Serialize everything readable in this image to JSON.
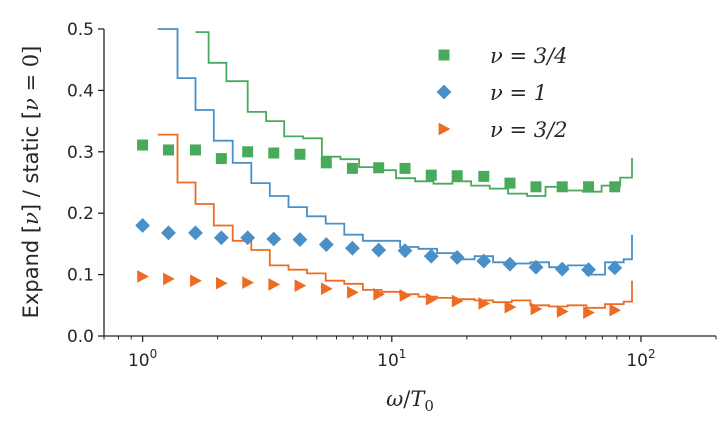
{
  "chart_data": {
    "type": "scatter",
    "xscale": "log",
    "xlim": [
      0.7,
      200
    ],
    "ylim": [
      0,
      0.5
    ],
    "xlabel": "ω/T₀",
    "ylabel": "Expand [ν] / static [ν = 0]",
    "x_tick_labels": [
      {
        "value": 1,
        "base": "10",
        "exp": "0"
      },
      {
        "value": 10,
        "base": "10",
        "exp": "1"
      },
      {
        "value": 100,
        "base": "10",
        "exp": "2"
      }
    ],
    "y_ticks": [
      0.0,
      0.1,
      0.2,
      0.3,
      0.4,
      0.5
    ],
    "y_tick_labels": [
      "0.0",
      "0.1",
      "0.2",
      "0.3",
      "0.4",
      "0.5"
    ],
    "legend_position": "upper-right",
    "series": [
      {
        "name": "ν = 3/4",
        "color": "#4aaa5c",
        "marker": "square",
        "points_x": [
          1.0,
          1.27,
          1.63,
          2.07,
          2.64,
          3.36,
          4.28,
          5.46,
          6.95,
          8.86,
          11.3,
          14.4,
          18.3,
          23.4,
          29.8,
          37.9,
          48.3,
          61.6,
          78.5
        ],
        "points_y": [
          0.311,
          0.303,
          0.303,
          0.289,
          0.3,
          0.298,
          0.296,
          0.282,
          0.273,
          0.274,
          0.273,
          0.262,
          0.261,
          0.26,
          0.249,
          0.243,
          0.243,
          0.243,
          0.243
        ],
        "line_edges": [
          1.63,
          1.84,
          2.17,
          2.64,
          3.13,
          3.7,
          4.41,
          5.24,
          6.22,
          7.39,
          8.78,
          10.4,
          12.4,
          14.7,
          17.5,
          20.8,
          24.7,
          29.3,
          34.9,
          41.4,
          49.2,
          58.5,
          69.5,
          82.5,
          92.0
        ],
        "line_values": [
          0.495,
          0.445,
          0.415,
          0.365,
          0.35,
          0.325,
          0.322,
          0.292,
          0.288,
          0.275,
          0.27,
          0.257,
          0.252,
          0.248,
          0.252,
          0.245,
          0.24,
          0.232,
          0.228,
          0.243,
          0.237,
          0.235,
          0.245,
          0.258,
          0.29
        ]
      },
      {
        "name": "ν = 1",
        "color": "#4a90c8",
        "marker": "diamond",
        "points_x": [
          1.0,
          1.27,
          1.63,
          2.07,
          2.64,
          3.36,
          4.28,
          5.46,
          6.95,
          8.86,
          11.3,
          14.4,
          18.3,
          23.4,
          29.8,
          37.9,
          48.3,
          61.6,
          78.5
        ],
        "points_y": [
          0.18,
          0.168,
          0.168,
          0.16,
          0.16,
          0.158,
          0.157,
          0.149,
          0.143,
          0.14,
          0.139,
          0.13,
          0.128,
          0.122,
          0.117,
          0.112,
          0.109,
          0.108,
          0.111
        ],
        "line_edges": [
          1.15,
          1.38,
          1.63,
          1.93,
          2.3,
          2.73,
          3.24,
          3.85,
          4.57,
          5.43,
          6.45,
          7.66,
          9.1,
          10.8,
          12.8,
          15.2,
          18.1,
          21.5,
          25.5,
          30.3,
          36.0,
          42.8,
          50.8,
          60.4,
          71.7,
          85.2,
          92.0
        ],
        "line_values": [
          0.5,
          0.42,
          0.368,
          0.318,
          0.282,
          0.249,
          0.228,
          0.21,
          0.195,
          0.183,
          0.165,
          0.155,
          0.155,
          0.145,
          0.142,
          0.135,
          0.125,
          0.13,
          0.12,
          0.118,
          0.12,
          0.112,
          0.115,
          0.1,
          0.12,
          0.125,
          0.165
        ]
      },
      {
        "name": "ν = 3/2",
        "color": "#ed6b22",
        "marker": "triangle",
        "points_x": [
          1.0,
          1.27,
          1.63,
          2.07,
          2.64,
          3.36,
          4.28,
          5.46,
          6.95,
          8.86,
          11.3,
          14.4,
          18.3,
          23.4,
          29.8,
          37.9,
          48.3,
          61.6,
          78.5
        ],
        "points_y": [
          0.097,
          0.093,
          0.09,
          0.086,
          0.087,
          0.084,
          0.082,
          0.077,
          0.071,
          0.068,
          0.066,
          0.06,
          0.057,
          0.053,
          0.047,
          0.044,
          0.04,
          0.038,
          0.042
        ],
        "line_edges": [
          1.15,
          1.38,
          1.63,
          1.93,
          2.3,
          2.73,
          3.24,
          3.85,
          4.57,
          5.43,
          6.45,
          7.66,
          9.1,
          10.8,
          12.8,
          15.2,
          18.1,
          21.5,
          25.5,
          30.3,
          36.0,
          42.8,
          50.8,
          60.4,
          71.7,
          85.2,
          92.0
        ],
        "line_values": [
          0.328,
          0.25,
          0.215,
          0.18,
          0.155,
          0.14,
          0.115,
          0.108,
          0.102,
          0.09,
          0.085,
          0.075,
          0.072,
          0.068,
          0.064,
          0.062,
          0.06,
          0.058,
          0.055,
          0.058,
          0.05,
          0.048,
          0.05,
          0.046,
          0.052,
          0.056,
          0.09
        ]
      }
    ]
  }
}
